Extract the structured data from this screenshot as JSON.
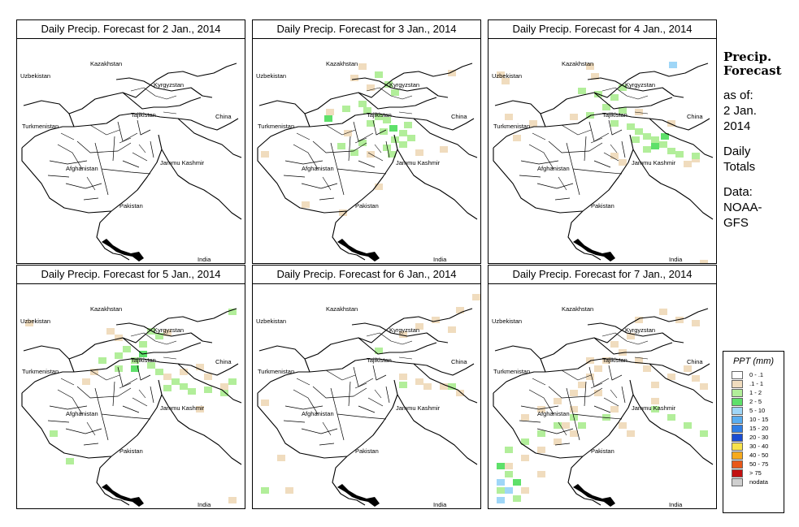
{
  "panels": [
    {
      "title": "Daily Precip. Forecast for  2 Jan., 2014",
      "patches": []
    },
    {
      "title": "Daily Precip. Forecast for  3 Jan., 2014",
      "patches": [
        {
          "category": ".1 - 1",
          "cells": [
            [
              130,
              30
            ],
            [
              120,
              44
            ],
            [
              140,
              56
            ],
            [
              112,
              112
            ],
            [
              140,
              138
            ],
            [
              200,
              136
            ],
            [
              230,
              132
            ],
            [
              240,
              38
            ],
            [
              90,
              86
            ],
            [
              150,
              178
            ],
            [
              106,
              210
            ],
            [
              60,
              200
            ],
            [
              10,
              138
            ]
          ]
        },
        {
          "category": "1 - 2",
          "cells": [
            [
              150,
              40
            ],
            [
              162,
              52
            ],
            [
              170,
              62
            ],
            [
              130,
              76
            ],
            [
              136,
              84
            ],
            [
              150,
              92
            ],
            [
              110,
              82
            ],
            [
              140,
              100
            ],
            [
              156,
              110
            ],
            [
              170,
              120
            ],
            [
              180,
              112
            ],
            [
              190,
              118
            ],
            [
              180,
              126
            ],
            [
              130,
              124
            ],
            [
              104,
              128
            ],
            [
              120,
              136
            ],
            [
              160,
              130
            ],
            [
              166,
              138
            ],
            [
              186,
              102
            ],
            [
              160,
              96
            ]
          ]
        },
        {
          "category": "2 - 5",
          "cells": [
            [
              88,
              94
            ],
            [
              168,
              106
            ]
          ]
        }
      ]
    },
    {
      "title": "Daily Precip. Forecast for  4 Jan., 2014",
      "patches": [
        {
          "category": ".1 - 1",
          "cells": [
            [
              10,
              40
            ],
            [
              16,
              48
            ],
            [
              20,
              92
            ],
            [
              30,
              118
            ],
            [
              50,
              100
            ],
            [
              120,
              30
            ],
            [
              126,
              42
            ],
            [
              100,
              92
            ],
            [
              180,
              86
            ],
            [
              220,
              100
            ],
            [
              150,
              140
            ],
            [
              260,
              272
            ],
            [
              10,
              280
            ],
            [
              240,
              150
            ],
            [
              250,
              144
            ],
            [
              160,
              148
            ]
          ]
        },
        {
          "category": "1 - 2",
          "cells": [
            [
              110,
              60
            ],
            [
              130,
              64
            ],
            [
              150,
              68
            ],
            [
              140,
              80
            ],
            [
              160,
              84
            ],
            [
              150,
              100
            ],
            [
              170,
              104
            ],
            [
              180,
              110
            ],
            [
              190,
              116
            ],
            [
              200,
              120
            ],
            [
              210,
              126
            ],
            [
              220,
              134
            ],
            [
              230,
              138
            ],
            [
              250,
              140
            ],
            [
              190,
              132
            ],
            [
              176,
              120
            ],
            [
              120,
              90
            ],
            [
              160,
              56
            ]
          ]
        },
        {
          "category": "2 - 5",
          "cells": [
            [
              200,
              128
            ],
            [
              212,
              116
            ]
          ]
        },
        {
          "category": "5 - 10",
          "cells": [
            [
              222,
              28
            ]
          ]
        }
      ]
    },
    {
      "title": "Daily Precip. Forecast for  5 Jan., 2014",
      "patches": [
        {
          "category": ".1 - 1",
          "cells": [
            [
              110,
              54
            ],
            [
              120,
              62
            ],
            [
              90,
              104
            ],
            [
              80,
              116
            ],
            [
              180,
              110
            ],
            [
              200,
              104
            ],
            [
              220,
              98
            ],
            [
              230,
              110
            ],
            [
              250,
              122
            ],
            [
              10,
              44
            ],
            [
              180,
              56
            ],
            [
              260,
              262
            ],
            [
              220,
              150
            ]
          ]
        },
        {
          "category": "1 - 2",
          "cells": [
            [
              160,
              54
            ],
            [
              170,
              60
            ],
            [
              150,
              70
            ],
            [
              130,
              76
            ],
            [
              120,
              84
            ],
            [
              140,
              90
            ],
            [
              160,
              96
            ],
            [
              170,
              104
            ],
            [
              190,
              116
            ],
            [
              200,
              122
            ],
            [
              210,
              128
            ],
            [
              230,
              126
            ],
            [
              250,
              130
            ],
            [
              260,
              116
            ],
            [
              180,
              124
            ],
            [
              40,
              180
            ],
            [
              60,
              214
            ],
            [
              100,
              90
            ],
            [
              120,
              100
            ],
            [
              260,
              30
            ]
          ]
        },
        {
          "category": "2 - 5",
          "cells": [
            [
              150,
              82
            ],
            [
              140,
              100
            ]
          ]
        }
      ]
    },
    {
      "title": "Daily Precip. Forecast for  6 Jan., 2014",
      "patches": [
        {
          "category": ".1 - 1",
          "cells": [
            [
              180,
              58
            ],
            [
              200,
              48
            ],
            [
              220,
              40
            ],
            [
              240,
              52
            ],
            [
              250,
              28
            ],
            [
              180,
              110
            ],
            [
              200,
              116
            ],
            [
              210,
              122
            ],
            [
              230,
              122
            ],
            [
              250,
              130
            ],
            [
              10,
              142
            ],
            [
              30,
              210
            ],
            [
              40,
              250
            ],
            [
              270,
              12
            ]
          ]
        },
        {
          "category": "1 - 2",
          "cells": [
            [
              150,
              78
            ],
            [
              180,
              120
            ],
            [
              10,
              250
            ],
            [
              240,
              122
            ]
          ]
        }
      ]
    },
    {
      "title": "Daily Precip. Forecast for  7 Jan., 2014",
      "patches": [
        {
          "category": ".1 - 1",
          "cells": [
            [
              40,
              160
            ],
            [
              60,
              150
            ],
            [
              80,
              140
            ],
            [
              100,
              130
            ],
            [
              110,
              120
            ],
            [
              120,
              110
            ],
            [
              130,
              100
            ],
            [
              100,
              150
            ],
            [
              90,
              170
            ],
            [
              80,
              190
            ],
            [
              60,
              200
            ],
            [
              40,
              210
            ],
            [
              20,
              220
            ],
            [
              130,
              130
            ],
            [
              150,
              150
            ],
            [
              160,
              170
            ],
            [
              170,
              180
            ],
            [
              200,
              120
            ],
            [
              220,
              110
            ],
            [
              240,
              100
            ],
            [
              250,
              112
            ],
            [
              260,
              122
            ],
            [
              190,
              100
            ],
            [
              180,
              90
            ],
            [
              160,
              80
            ],
            [
              150,
              70
            ],
            [
              170,
              60
            ],
            [
              180,
              40
            ],
            [
              210,
              30
            ],
            [
              230,
              40
            ],
            [
              250,
              44
            ],
            [
              120,
              90
            ],
            [
              140,
              90
            ],
            [
              200,
              140
            ],
            [
              40,
              250
            ],
            [
              60,
              230
            ],
            [
              100,
              180
            ]
          ]
        },
        {
          "category": "1 - 2",
          "cells": [
            [
              20,
              200
            ],
            [
              40,
              190
            ],
            [
              60,
              180
            ],
            [
              80,
              170
            ],
            [
              100,
              160
            ],
            [
              110,
              170
            ],
            [
              20,
              230
            ],
            [
              10,
              250
            ],
            [
              30,
              260
            ],
            [
              140,
              160
            ],
            [
              200,
              150
            ],
            [
              220,
              160
            ],
            [
              240,
              170
            ],
            [
              260,
              180
            ]
          ]
        },
        {
          "category": "2 - 5",
          "cells": [
            [
              10,
              220
            ],
            [
              30,
              240
            ]
          ]
        },
        {
          "category": "5 - 10",
          "cells": [
            [
              10,
              240
            ],
            [
              20,
              250
            ],
            [
              10,
              262
            ]
          ]
        }
      ]
    }
  ],
  "map_labels": {
    "kazakhstan": "Kazakhstan",
    "uzbekistan": "Uzbekistan",
    "kyrgyzstan": "Kyrgyzstan",
    "tajikistan": "Tajikistan",
    "turkmenistan": "Turkmenistan",
    "china": "China",
    "afghanistan": "Afghanistan",
    "jammu_kashmir": "Jammu Kashmir",
    "pakistan": "Pakistan",
    "india": "India"
  },
  "sidebar": {
    "heading_1": "Precip.",
    "heading_2": "Forecast",
    "asof_1": "as of:",
    "asof_2": "2 Jan.",
    "asof_3": "2014",
    "totals_1": "Daily",
    "totals_2": "Totals",
    "data_1": "Data:",
    "data_2": "NOAA-",
    "data_3": "GFS"
  },
  "legend": {
    "title": "PPT (mm)",
    "items": [
      {
        "label": "0 - .1",
        "color": "#ffffff"
      },
      {
        "label": ".1 - 1",
        "color": "#f0dcbe"
      },
      {
        "label": "1 - 2",
        "color": "#b2ee9a"
      },
      {
        "label": "2 - 5",
        "color": "#5ee06a"
      },
      {
        "label": "5 - 10",
        "color": "#9fd6f7"
      },
      {
        "label": "10 - 15",
        "color": "#5aaef0"
      },
      {
        "label": "15 - 20",
        "color": "#2f7ee6"
      },
      {
        "label": "20 - 30",
        "color": "#1a4cd2"
      },
      {
        "label": "30 - 40",
        "color": "#f7e24a"
      },
      {
        "label": "40 - 50",
        "color": "#f6aa1e"
      },
      {
        "label": "50 - 75",
        "color": "#e8581a"
      },
      {
        "label": "> 75",
        "color": "#c21010"
      },
      {
        "label": "nodata",
        "color": "#cfcfcf"
      }
    ]
  }
}
